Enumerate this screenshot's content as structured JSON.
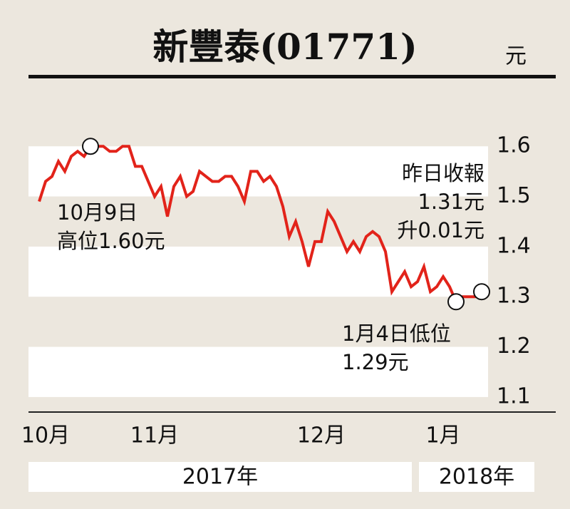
{
  "chart_data": {
    "type": "line",
    "title": "新豐泰(01771)",
    "y_unit": "元",
    "categories": [
      null,
      "10月",
      null,
      null,
      null,
      null,
      null,
      null,
      null,
      null,
      null,
      null,
      null,
      null,
      null,
      null,
      null,
      null,
      "11月",
      null,
      null,
      null,
      null,
      null,
      null,
      null,
      null,
      null,
      null,
      null,
      null,
      null,
      null,
      null,
      null,
      null,
      null,
      null,
      null,
      null,
      null,
      null,
      null,
      null,
      "12月",
      null,
      null,
      null,
      null,
      null,
      null,
      null,
      null,
      null,
      null,
      null,
      null,
      null,
      null,
      null,
      null,
      null,
      null,
      "1月",
      null,
      null,
      null,
      null,
      null,
      null
    ],
    "series": [
      {
        "color": "#e2231a",
        "values": [
          1.49,
          1.53,
          1.54,
          1.57,
          1.55,
          1.58,
          1.59,
          1.58,
          1.6,
          1.6,
          1.6,
          1.59,
          1.59,
          1.6,
          1.6,
          1.56,
          1.56,
          1.53,
          1.5,
          1.52,
          1.46,
          1.52,
          1.54,
          1.5,
          1.51,
          1.55,
          1.54,
          1.53,
          1.53,
          1.54,
          1.54,
          1.52,
          1.49,
          1.55,
          1.55,
          1.53,
          1.54,
          1.52,
          1.48,
          1.42,
          1.45,
          1.41,
          1.36,
          1.41,
          1.41,
          1.47,
          1.45,
          1.42,
          1.39,
          1.41,
          1.39,
          1.42,
          1.43,
          1.42,
          1.39,
          1.31,
          1.33,
          1.35,
          1.32,
          1.33,
          1.36,
          1.31,
          1.32,
          1.34,
          1.32,
          1.29,
          1.3,
          1.3,
          1.3,
          1.31
        ]
      }
    ],
    "ylim": [
      1.07,
      1.67
    ],
    "yticks": [
      1.1,
      1.2,
      1.3,
      1.4,
      1.5,
      1.6
    ],
    "annotations": [
      [
        "10月9日",
        "高位1.60元"
      ],
      [
        "昨日收報",
        "1.31元",
        "升0.01元"
      ],
      [
        "1月4日低位",
        "1.29元"
      ]
    ],
    "years": [
      "2017年",
      "2018年"
    ]
  }
}
